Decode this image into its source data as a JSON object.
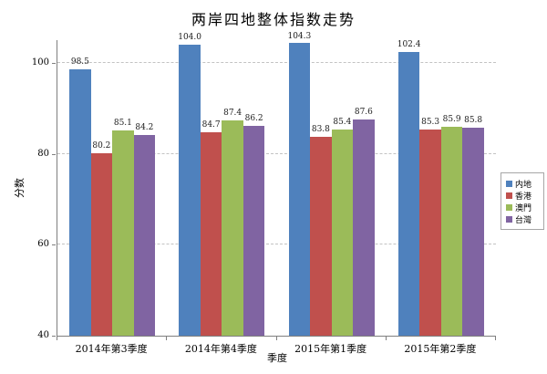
{
  "chart_data": {
    "type": "bar",
    "title": "两岸四地整体指数走势",
    "xlabel": "季度",
    "ylabel": "分数",
    "ylim": [
      40,
      105
    ],
    "yticks": [
      40,
      60,
      80,
      100
    ],
    "grid": true,
    "legend_position": "right",
    "categories": [
      "2014年第3季度",
      "2014年第4季度",
      "2015年第1季度",
      "2015年第2季度"
    ],
    "series": [
      {
        "name": "内地",
        "color": "#4F81BD",
        "values": [
          98.5,
          104.0,
          104.3,
          102.4
        ]
      },
      {
        "name": "香港",
        "color": "#C0504D",
        "values": [
          80.2,
          84.7,
          83.8,
          85.3
        ]
      },
      {
        "name": "澳門",
        "color": "#9BBB59",
        "values": [
          85.1,
          87.4,
          85.4,
          85.9
        ]
      },
      {
        "name": "台灣",
        "color": "#8064A2",
        "values": [
          84.2,
          86.2,
          87.6,
          85.8
        ]
      }
    ]
  }
}
